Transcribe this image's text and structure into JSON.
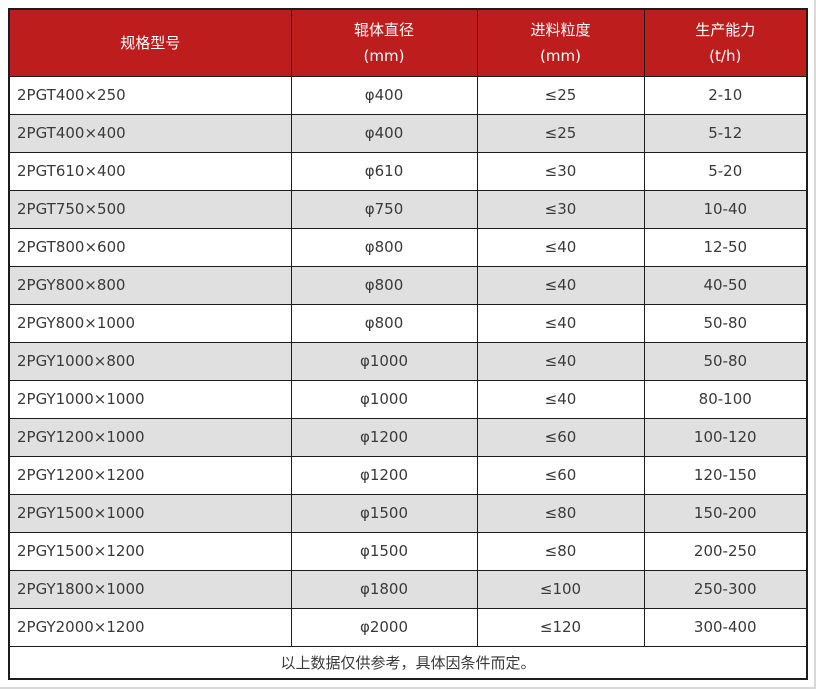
{
  "table": {
    "headers": [
      {
        "label": "规格型号",
        "unit": ""
      },
      {
        "label": "辊体直径",
        "unit": "(mm)"
      },
      {
        "label": "进料粒度",
        "unit": "(mm)"
      },
      {
        "label": "生产能力",
        "unit": "(t/h)"
      }
    ],
    "rows": [
      [
        "2PGT400×250",
        "φ400",
        "≤25",
        "2-10"
      ],
      [
        "2PGT400×400",
        "φ400",
        "≤25",
        "5-12"
      ],
      [
        "2PGT610×400",
        "φ610",
        "≤30",
        "5-20"
      ],
      [
        "2PGT750×500",
        "φ750",
        "≤30",
        "10-40"
      ],
      [
        "2PGT800×600",
        "φ800",
        "≤40",
        "12-50"
      ],
      [
        "2PGY800×800",
        "φ800",
        "≤40",
        "40-50"
      ],
      [
        "2PGY800×1000",
        "φ800",
        "≤40",
        "50-80"
      ],
      [
        "2PGY1000×800",
        "φ1000",
        "≤40",
        "50-80"
      ],
      [
        "2PGY1000×1000",
        "φ1000",
        "≤40",
        "80-100"
      ],
      [
        "2PGY1200×1000",
        "φ1200",
        "≤60",
        "100-120"
      ],
      [
        "2PGY1200×1200",
        "φ1200",
        "≤60",
        "120-150"
      ],
      [
        "2PGY1500×1000",
        "φ1500",
        "≤80",
        "150-200"
      ],
      [
        "2PGY1500×1200",
        "φ1500",
        "≤80",
        "200-250"
      ],
      [
        "2PGY1800×1000",
        "φ1800",
        "≤100",
        "250-300"
      ],
      [
        "2PGY2000×1200",
        "φ2000",
        "≤120",
        "300-400"
      ]
    ],
    "footer_note": "以上数据仅供参考，具体因条件而定。"
  },
  "colors": {
    "header_bg": "#BE1D1E",
    "header_text": "#FFFFFF",
    "row_bg": "#FFFFFF",
    "row_alt_bg": "#E0E0E0",
    "border": "#1C1C1C",
    "text": "#3A3A3A",
    "page_edge": "#D8D8D8"
  }
}
